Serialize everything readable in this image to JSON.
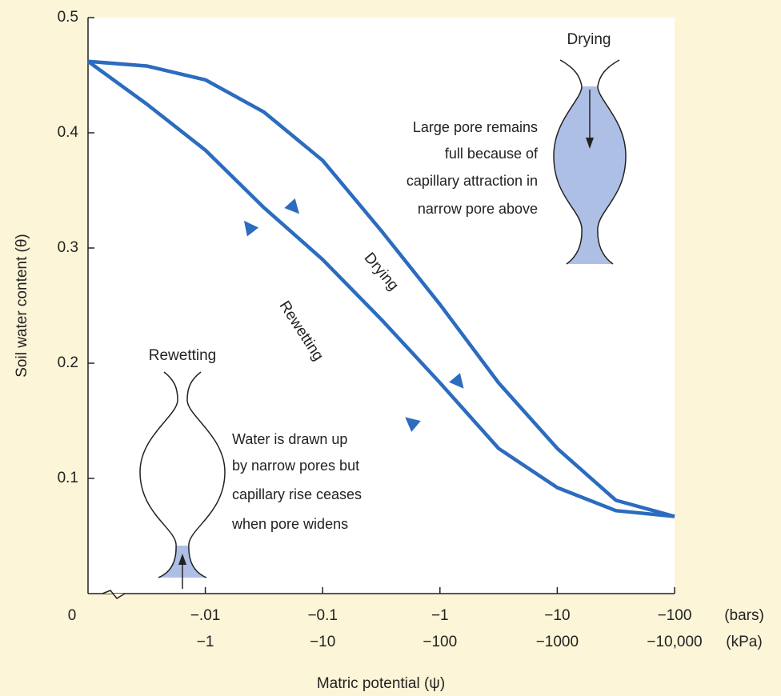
{
  "chart_data": {
    "type": "line",
    "xscale": "log",
    "x_label": "Matric potential (ψ)",
    "y_label": "Soil water content (θ)",
    "x_origin_label": "0",
    "x_units": "(bars)",
    "x_kpa_units": "(kPa)",
    "x": [
      -0.001,
      -0.00316,
      -0.01,
      -0.0316,
      -0.1,
      -0.316,
      -1,
      -3.16,
      -10,
      -31.6,
      -100
    ],
    "series": [
      {
        "name": "Drying",
        "color": "#2b6cbf",
        "values": [
          0.462,
          0.458,
          0.446,
          0.418,
          0.376,
          0.315,
          0.251,
          0.183,
          0.126,
          0.081,
          0.067
        ]
      },
      {
        "name": "Rewetting",
        "color": "#2b6cbf",
        "values": [
          0.462,
          0.425,
          0.385,
          0.335,
          0.29,
          0.238,
          0.183,
          0.126,
          0.092,
          0.072,
          0.067
        ]
      }
    ],
    "xlim": [
      -0.001,
      -100
    ],
    "ylim": [
      0,
      0.5
    ],
    "xticks": [
      {
        "value": -0.01,
        "label": "−.01"
      },
      {
        "value": -0.1,
        "label": "−0.1"
      },
      {
        "value": -1,
        "label": "−1"
      },
      {
        "value": -10,
        "label": "−10"
      },
      {
        "value": -100,
        "label": "−100"
      }
    ],
    "x_kpa_ticks": [
      {
        "value": -0.01,
        "label": "−1"
      },
      {
        "value": -0.1,
        "label": "−10"
      },
      {
        "value": -1,
        "label": "−100"
      },
      {
        "value": -10,
        "label": "−1000"
      },
      {
        "value": -100,
        "label": "−10,000"
      }
    ],
    "yticks": [
      0.1,
      0.2,
      0.3,
      0.4,
      0.5
    ],
    "grid": false,
    "annotations": {
      "drying_pore_label": "Drying",
      "drying_note": [
        "Large pore remains",
        "full because of",
        "capillary attraction in",
        "narrow pore above"
      ],
      "rewetting_pore_label": "Rewetting",
      "rewetting_note": [
        "Water is drawn up",
        "by narrow pores but",
        "capillary rise ceases",
        "when pore widens"
      ]
    }
  }
}
